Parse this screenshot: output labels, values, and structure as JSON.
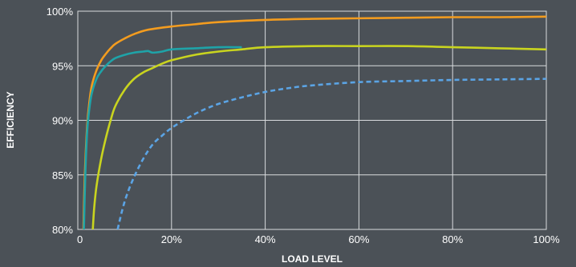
{
  "chart_data": {
    "type": "line",
    "title": "",
    "xlabel": "LOAD LEVEL",
    "ylabel": "EFFICIENCY",
    "xlim": [
      0,
      100
    ],
    "ylim": [
      80,
      100
    ],
    "x_ticks": [
      {
        "value": 0,
        "label": "0"
      },
      {
        "value": 20,
        "label": "20%"
      },
      {
        "value": 40,
        "label": "40%"
      },
      {
        "value": 60,
        "label": "60%"
      },
      {
        "value": 80,
        "label": "80%"
      },
      {
        "value": 100,
        "label": "100%"
      }
    ],
    "y_ticks": [
      {
        "value": 80,
        "label": "80%"
      },
      {
        "value": 85,
        "label": "85%"
      },
      {
        "value": 90,
        "label": "90%"
      },
      {
        "value": 95,
        "label": "95%"
      },
      {
        "value": 100,
        "label": "100%"
      }
    ],
    "grid": true,
    "legend": "none",
    "background_color": "#4b5157",
    "grid_color": "#d9dcde",
    "series": [
      {
        "color": "#f39c1f",
        "dashed": false,
        "x": [
          1.2,
          1.5,
          2,
          2.5,
          3,
          4,
          5,
          6,
          7,
          8,
          10,
          12,
          15,
          20,
          25,
          30,
          40,
          50,
          60,
          70,
          80,
          90,
          100
        ],
        "y": [
          80,
          85,
          89.5,
          91.8,
          93.2,
          94.6,
          95.5,
          96.1,
          96.6,
          97,
          97.5,
          97.9,
          98.3,
          98.6,
          98.8,
          99,
          99.2,
          99.3,
          99.35,
          99.4,
          99.45,
          99.45,
          99.5
        ]
      },
      {
        "color": "#1fa3a8",
        "dashed": false,
        "x": [
          1.3,
          1.6,
          2,
          2.5,
          3,
          4,
          5,
          6,
          7,
          8,
          10,
          12,
          14,
          15,
          16,
          18,
          20,
          25,
          30,
          35
        ],
        "y": [
          80,
          85,
          89,
          91.2,
          92.5,
          93.8,
          94.5,
          95,
          95.4,
          95.7,
          96,
          96.2,
          96.3,
          96.35,
          96.2,
          96.3,
          96.5,
          96.6,
          96.7,
          96.7
        ]
      },
      {
        "color": "#c9d41f",
        "dashed": false,
        "x": [
          3.2,
          3.5,
          4,
          5,
          6,
          7,
          8,
          10,
          12,
          14,
          16,
          18,
          20,
          25,
          30,
          35,
          40,
          50,
          60,
          70,
          80,
          90,
          100
        ],
        "y": [
          80,
          82,
          84,
          86.5,
          88.4,
          90,
          91.3,
          92.8,
          93.8,
          94.4,
          94.8,
          95.2,
          95.5,
          96,
          96.3,
          96.5,
          96.7,
          96.8,
          96.8,
          96.8,
          96.7,
          96.6,
          96.5
        ]
      },
      {
        "color": "#5ba4e5",
        "dashed": true,
        "x": [
          8.5,
          9.5,
          10.5,
          12,
          14,
          16,
          18,
          20,
          23,
          26,
          30,
          35,
          40,
          45,
          50,
          60,
          70,
          80,
          90,
          100
        ],
        "y": [
          80,
          81.8,
          83.2,
          84.8,
          86.5,
          87.8,
          88.6,
          89.3,
          90.1,
          90.8,
          91.5,
          92.1,
          92.6,
          92.95,
          93.2,
          93.5,
          93.6,
          93.7,
          93.75,
          93.8
        ]
      }
    ]
  }
}
